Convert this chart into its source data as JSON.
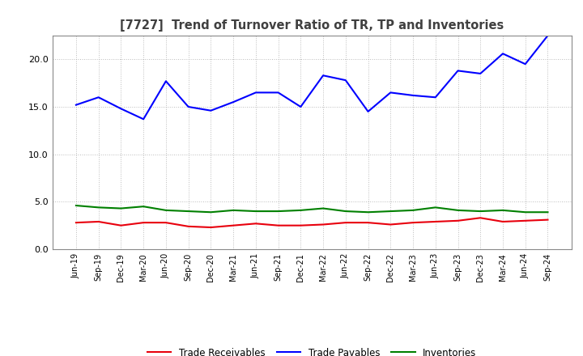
{
  "title": "[7727]  Trend of Turnover Ratio of TR, TP and Inventories",
  "x_labels": [
    "Jun-19",
    "Sep-19",
    "Dec-19",
    "Mar-20",
    "Jun-20",
    "Sep-20",
    "Dec-20",
    "Mar-21",
    "Jun-21",
    "Sep-21",
    "Dec-21",
    "Mar-22",
    "Jun-22",
    "Sep-22",
    "Dec-22",
    "Mar-23",
    "Jun-23",
    "Sep-23",
    "Dec-23",
    "Mar-24",
    "Jun-24",
    "Sep-24"
  ],
  "trade_receivables": [
    2.8,
    2.9,
    2.5,
    2.8,
    2.8,
    2.4,
    2.3,
    2.5,
    2.7,
    2.5,
    2.5,
    2.6,
    2.8,
    2.8,
    2.6,
    2.8,
    2.9,
    3.0,
    3.3,
    2.9,
    3.0,
    3.1
  ],
  "trade_payables": [
    15.2,
    16.0,
    14.8,
    13.7,
    17.7,
    15.0,
    14.6,
    15.5,
    16.5,
    16.5,
    15.0,
    18.3,
    17.8,
    14.5,
    16.5,
    16.2,
    16.0,
    18.8,
    18.5,
    20.6,
    19.5,
    22.5
  ],
  "inventories": [
    4.6,
    4.4,
    4.3,
    4.5,
    4.1,
    4.0,
    3.9,
    4.1,
    4.0,
    4.0,
    4.1,
    4.3,
    4.0,
    3.9,
    4.0,
    4.1,
    4.4,
    4.1,
    4.0,
    4.1,
    3.9,
    3.9
  ],
  "tr_color": "#e8000d",
  "tp_color": "#0000ff",
  "inv_color": "#008000",
  "ylim": [
    0,
    22.5
  ],
  "yticks": [
    0.0,
    5.0,
    10.0,
    15.0,
    20.0
  ],
  "legend_labels": [
    "Trade Receivables",
    "Trade Payables",
    "Inventories"
  ],
  "background_color": "#ffffff",
  "grid_color": "#aaaaaa",
  "title_color": "#404040"
}
